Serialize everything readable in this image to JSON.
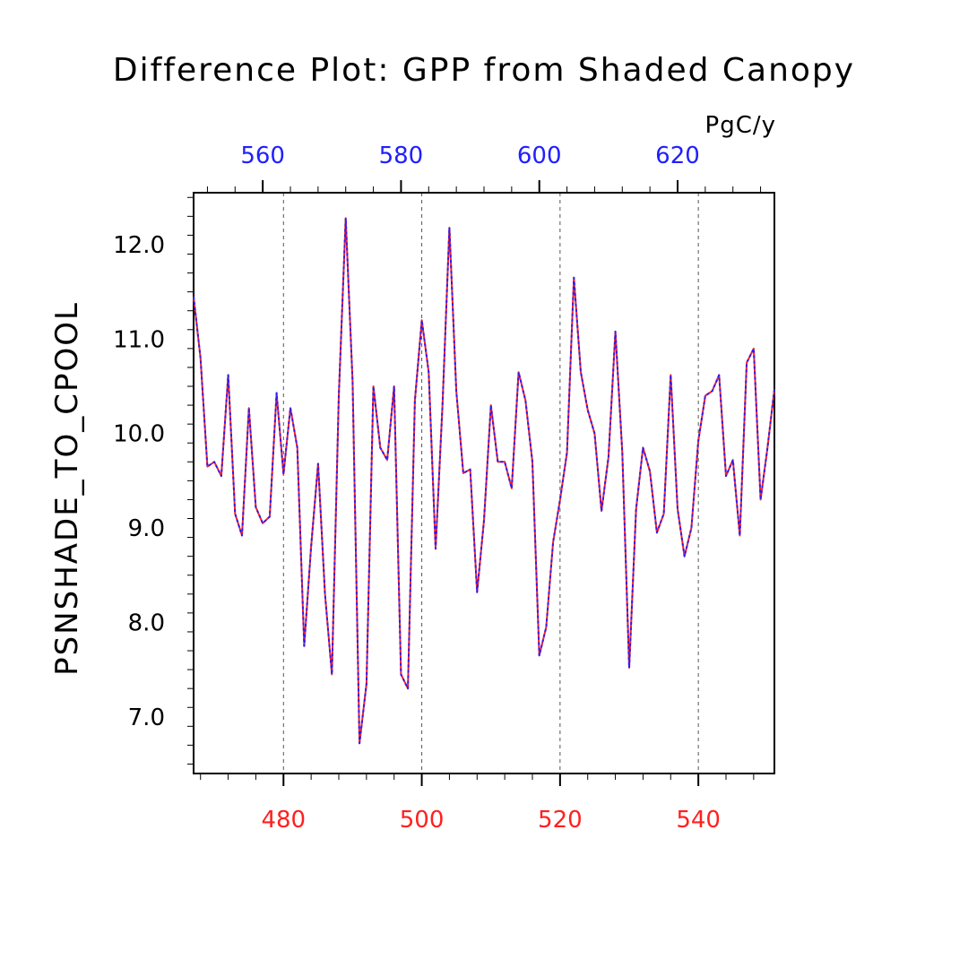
{
  "chart_data": {
    "type": "line",
    "title": "Difference Plot: GPP from Shaded Canopy",
    "ylabel": "PSNSHADE_TO_CPOOL",
    "units": "PgC/y",
    "ylim": [
      6.4,
      12.55
    ],
    "yticks": [
      7.0,
      8.0,
      9.0,
      10.0,
      11.0,
      12.0
    ],
    "ytick_labels": [
      "7.0",
      "8.0",
      "9.0",
      "10.0",
      "11.0",
      "12.0"
    ],
    "x_bottom": {
      "lim": [
        467,
        551
      ],
      "ticks": [
        480,
        500,
        520,
        540
      ],
      "tick_labels": [
        "480",
        "500",
        "520",
        "540"
      ],
      "color": "#ff2020"
    },
    "x_top": {
      "lim": [
        550,
        634
      ],
      "ticks": [
        560,
        580,
        600,
        620
      ],
      "tick_labels": [
        "560",
        "580",
        "600",
        "620"
      ],
      "color": "#2020ff"
    },
    "grid": "vertical-dashed",
    "x": [
      467,
      468,
      469,
      470,
      471,
      472,
      473,
      474,
      475,
      476,
      477,
      478,
      479,
      480,
      481,
      482,
      483,
      484,
      485,
      486,
      487,
      488,
      489,
      490,
      491,
      492,
      493,
      494,
      495,
      496,
      497,
      498,
      499,
      500,
      501,
      502,
      503,
      504,
      505,
      506,
      507,
      508,
      509,
      510,
      511,
      512,
      513,
      514,
      515,
      516,
      517,
      518,
      519,
      520,
      521,
      522,
      523,
      524,
      525,
      526,
      527,
      528,
      529,
      530,
      531,
      532,
      533,
      534,
      535,
      536,
      537,
      538,
      539,
      540,
      541,
      542,
      543,
      544,
      545,
      546,
      547,
      548,
      549,
      550,
      551
    ],
    "series": [
      {
        "color": "#ff2020",
        "values": [
          11.45,
          10.8,
          9.65,
          9.7,
          9.55,
          10.62,
          9.15,
          8.92,
          10.27,
          9.22,
          9.05,
          9.12,
          10.43,
          9.57,
          10.27,
          9.85,
          7.75,
          8.8,
          9.68,
          8.3,
          7.45,
          10.4,
          12.28,
          10.55,
          6.72,
          7.35,
          10.5,
          9.85,
          9.72,
          10.5,
          7.45,
          7.3,
          10.35,
          11.2,
          10.65,
          8.78,
          10.3,
          12.18,
          10.45,
          9.58,
          9.62,
          8.32,
          9.08,
          10.3,
          9.7,
          9.7,
          9.42,
          10.65,
          10.35,
          9.7,
          7.65,
          7.95,
          8.85,
          9.3,
          9.8,
          11.65,
          10.65,
          10.25,
          10.0,
          9.18,
          9.75,
          11.08,
          9.8,
          7.52,
          9.2,
          9.85,
          9.6,
          8.95,
          9.15,
          10.62,
          9.2,
          8.7,
          9.0,
          9.92,
          10.4,
          10.45,
          10.62,
          9.55,
          9.72,
          8.92,
          10.75,
          10.9,
          9.3,
          9.85,
          10.47
        ]
      },
      {
        "color": "#2020ff",
        "values": [
          11.45,
          10.8,
          9.65,
          9.7,
          9.55,
          10.62,
          9.15,
          8.92,
          10.27,
          9.22,
          9.05,
          9.12,
          10.43,
          9.57,
          10.27,
          9.85,
          7.75,
          8.8,
          9.68,
          8.3,
          7.45,
          10.4,
          12.28,
          10.55,
          6.72,
          7.35,
          10.5,
          9.85,
          9.72,
          10.5,
          7.45,
          7.3,
          10.35,
          11.2,
          10.65,
          8.78,
          10.3,
          12.18,
          10.45,
          9.58,
          9.62,
          8.32,
          9.08,
          10.3,
          9.7,
          9.7,
          9.42,
          10.65,
          10.35,
          9.7,
          7.65,
          7.95,
          8.85,
          9.3,
          9.8,
          11.65,
          10.65,
          10.25,
          10.0,
          9.18,
          9.75,
          11.08,
          9.8,
          7.52,
          9.2,
          9.85,
          9.6,
          8.95,
          9.15,
          10.62,
          9.2,
          8.7,
          9.0,
          9.92,
          10.4,
          10.45,
          10.62,
          9.55,
          9.72,
          8.92,
          10.75,
          10.9,
          9.3,
          9.85,
          10.47
        ]
      }
    ]
  }
}
